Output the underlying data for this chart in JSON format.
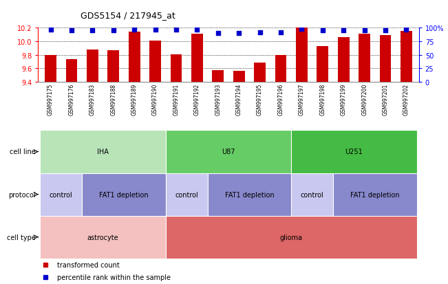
{
  "title": "GDS5154 / 217945_at",
  "samples": [
    "GSM997175",
    "GSM997176",
    "GSM997183",
    "GSM997188",
    "GSM997189",
    "GSM997190",
    "GSM997191",
    "GSM997192",
    "GSM997193",
    "GSM997194",
    "GSM997195",
    "GSM997196",
    "GSM997197",
    "GSM997198",
    "GSM997199",
    "GSM997200",
    "GSM997201",
    "GSM997202"
  ],
  "bar_values": [
    9.8,
    9.74,
    9.88,
    9.87,
    10.14,
    10.01,
    9.81,
    10.11,
    9.57,
    9.56,
    9.69,
    9.8,
    10.2,
    9.93,
    10.06,
    10.11,
    10.09,
    10.15
  ],
  "percentile_values": [
    97,
    95,
    96,
    96,
    97,
    97,
    97,
    97,
    90,
    90,
    91,
    91,
    98,
    96,
    96,
    96,
    96,
    97
  ],
  "ylim_left": [
    9.4,
    10.2
  ],
  "ylim_right": [
    0,
    100
  ],
  "yticks_left": [
    9.4,
    9.6,
    9.8,
    10.0,
    10.2
  ],
  "yticks_right": [
    0,
    25,
    50,
    75,
    100
  ],
  "ytick_labels_right": [
    "0",
    "25",
    "50",
    "75",
    "100%"
  ],
  "bar_color": "#cc0000",
  "percentile_color": "#0000cc",
  "plot_bg_color": "#ffffff",
  "xtick_bg_color": "#d0d0d0",
  "cell_line_groups": [
    {
      "label": "IHA",
      "start": 0,
      "end": 6,
      "color": "#b8e4b8"
    },
    {
      "label": "U87",
      "start": 6,
      "end": 12,
      "color": "#66cc66"
    },
    {
      "label": "U251",
      "start": 12,
      "end": 18,
      "color": "#44bb44"
    }
  ],
  "protocol_groups": [
    {
      "label": "control",
      "start": 0,
      "end": 2,
      "color": "#c8c8f0"
    },
    {
      "label": "FAT1 depletion",
      "start": 2,
      "end": 6,
      "color": "#8888cc"
    },
    {
      "label": "control",
      "start": 6,
      "end": 8,
      "color": "#c8c8f0"
    },
    {
      "label": "FAT1 depletion",
      "start": 8,
      "end": 12,
      "color": "#8888cc"
    },
    {
      "label": "control",
      "start": 12,
      "end": 14,
      "color": "#c8c8f0"
    },
    {
      "label": "FAT1 depletion",
      "start": 14,
      "end": 18,
      "color": "#8888cc"
    }
  ],
  "cell_type_groups": [
    {
      "label": "astrocyte",
      "start": 0,
      "end": 6,
      "color": "#f4c0c0"
    },
    {
      "label": "glioma",
      "start": 6,
      "end": 18,
      "color": "#dd6666"
    }
  ],
  "row_labels": [
    "cell line",
    "protocol",
    "cell type"
  ],
  "legend_items": [
    {
      "label": "transformed count",
      "color": "#cc0000"
    },
    {
      "label": "percentile rank within the sample",
      "color": "#0000cc"
    }
  ]
}
